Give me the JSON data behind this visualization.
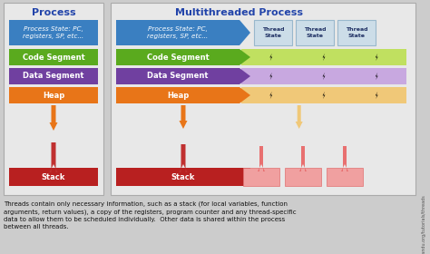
{
  "bg_color": "#cccccc",
  "panel_bg": "#e8e8e8",
  "panel_border": "#aaaaaa",
  "title_left": "Process",
  "title_right": "Multithreaded Process",
  "color_blue": "#3a7fc1",
  "color_green": "#5aaa1e",
  "color_purple": "#7040a0",
  "color_orange": "#e87518",
  "color_red_dark": "#b82020",
  "color_red_light": "#f0a0a0",
  "color_thread_state": "#ccdde8",
  "color_thread_state_border": "#99b8cc",
  "color_lightning_green": "#c0e060",
  "color_lightning_purple": "#c8a8e0",
  "color_lightning_orange": "#f0c878",
  "color_arrow_orange": "#e87518",
  "color_arrow_red": "#c03030",
  "color_arrow_red_light": "#e87070",
  "caption_line1": "Threads contain only necessary information, such as a stack (for local variables, function",
  "caption_line2": "arguments, return values), a copy of the registers, program counter and any thread-specific",
  "caption_line3": "data to allow them to be scheduled individually.  Other data is shared within the process",
  "caption_line4": "between all threads.",
  "watermark": "© Alfred Park, http://randu.org/tutorials/threads"
}
